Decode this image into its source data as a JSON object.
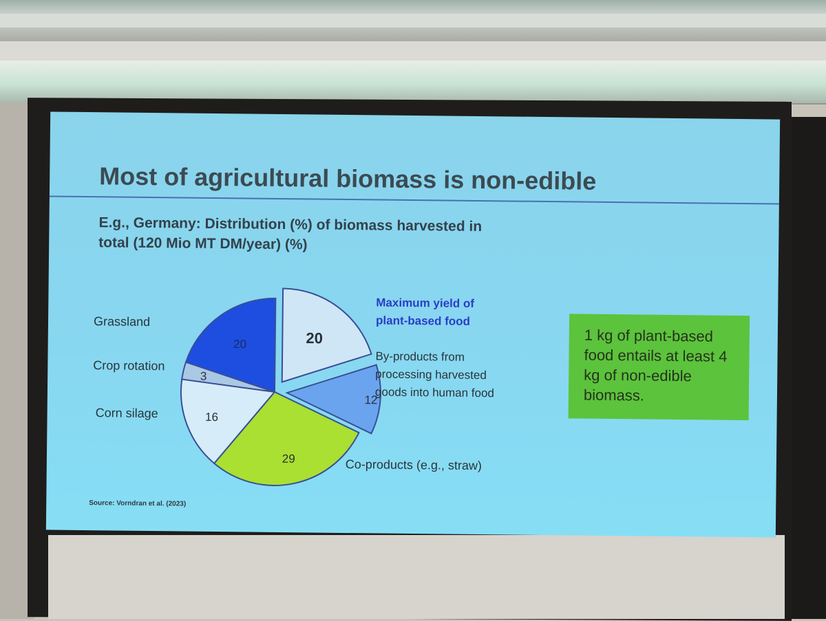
{
  "slide": {
    "title": "Most of agricultural biomass is non-edible",
    "subtitle": "E.g., Germany: Distribution (%) of biomass harvested in total (120 Mio MT DM/year) (%)",
    "callout": "1 kg of plant-based food entails at least 4 kg of non-edible biomass.",
    "source": "Source: Vorndran et al. (2023)"
  },
  "chart_data": {
    "type": "pie",
    "title": "",
    "slices": [
      {
        "label": "Maximum yield of plant-based food",
        "value": 20,
        "color": "#cfe6f7",
        "exploded": true
      },
      {
        "label": "By-products from processing harvested goods into human food",
        "value": 12,
        "color": "#6aa4ee",
        "exploded": true
      },
      {
        "label": "Co-products (e.g., straw)",
        "value": 29,
        "color": "#a9e032",
        "exploded": false
      },
      {
        "label": "Corn silage",
        "value": 16,
        "color": "#d6ecf8",
        "exploded": false
      },
      {
        "label": "Crop rotation",
        "value": 3,
        "color": "#a9c8e4",
        "exploded": false
      },
      {
        "label": "Grassland",
        "value": 20,
        "color": "#1d4ee0",
        "exploded": false
      }
    ],
    "label_line_breaks": {
      "Maximum yield of plant-based food": [
        "Maximum yield of",
        "plant-based food"
      ],
      "By-products from processing harvested goods into human food": [
        "By-products from",
        "processing harvested",
        "goods into human food"
      ]
    },
    "label_colors": {
      "Maximum yield of plant-based food": "#2a3ec8"
    }
  }
}
